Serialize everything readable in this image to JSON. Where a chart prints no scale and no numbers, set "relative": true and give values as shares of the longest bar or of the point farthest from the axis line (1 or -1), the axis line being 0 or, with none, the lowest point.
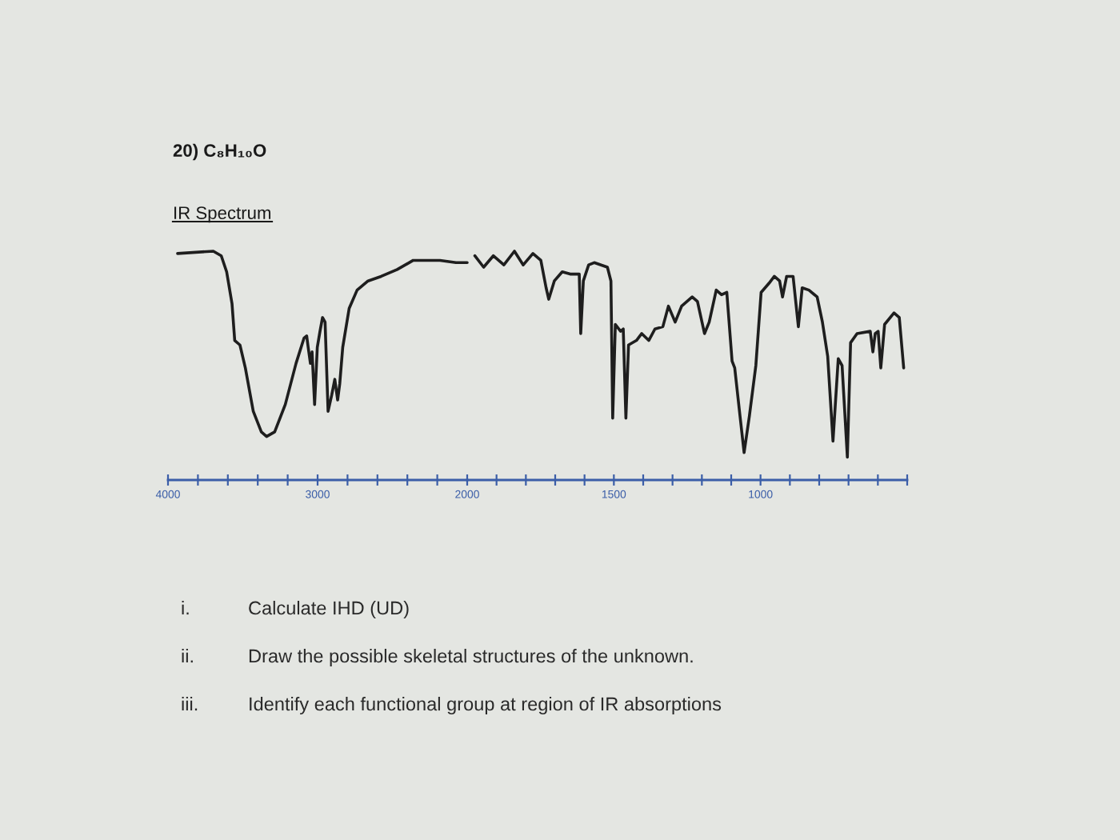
{
  "chart_data": [
    {
      "type": "line",
      "title": "20) C₈H₁₀O",
      "subtitle": "IR Spectrum",
      "relative": true,
      "tick_labels": "x",
      "grid": false,
      "marker": "none",
      "line_style": "solid",
      "x": [
        3936,
        3697,
        3644,
        3608,
        3572,
        3554,
        3519,
        3483,
        3430,
        3376,
        3341,
        3287,
        3216,
        3144,
        3091,
        3073,
        3063,
        3048,
        3037,
        3020,
        3002,
        2984,
        2967,
        2950,
        2930,
        2906,
        2885,
        2866,
        2852,
        2832,
        2789,
        2736,
        2663,
        2575,
        2468,
        2361,
        2182,
        2075,
        2000
      ],
      "series": [
        {
          "color": "#1e1e1e",
          "values": [
            0.99,
            1.0,
            0.98,
            0.91,
            0.77,
            0.61,
            0.59,
            0.49,
            0.3,
            0.21,
            0.19,
            0.21,
            0.33,
            0.51,
            0.62,
            0.63,
            0.58,
            0.51,
            0.56,
            0.33,
            0.58,
            0.65,
            0.71,
            0.69,
            0.3,
            0.37,
            0.44,
            0.35,
            0.42,
            0.58,
            0.75,
            0.83,
            0.87,
            0.89,
            0.92,
            0.96,
            0.96,
            0.95,
            0.95
          ]
        }
      ],
      "xlim": [
        4000,
        2000
      ],
      "xticks": [
        4000,
        {
          "value": 3800,
          "label": null
        },
        {
          "value": 3600,
          "label": null
        },
        {
          "value": 3400,
          "label": null
        },
        {
          "value": 3200,
          "label": null
        },
        3000,
        {
          "value": 2800,
          "label": null
        },
        {
          "value": 2600,
          "label": null
        },
        {
          "value": 2400,
          "label": null
        },
        {
          "value": 2200,
          "label": null
        },
        2000
      ],
      "annotations": [
        "i.",
        "Calculate IHD (UD)",
        "ii.",
        "Draw the possible skeletal structures of the unknown.",
        "iii.",
        "Identify each functional group at region of IR absorptions"
      ]
    },
    {
      "type": "line",
      "relative": true,
      "tick_labels": "x",
      "grid": false,
      "marker": "none",
      "line_style": "solid",
      "x": [
        1974,
        1944,
        1911,
        1875,
        1839,
        1809,
        1776,
        1749,
        1731,
        1722,
        1703,
        1676,
        1649,
        1618,
        1613,
        1604,
        1586,
        1567,
        1522,
        1510,
        1504,
        1495,
        1477,
        1468,
        1459,
        1450,
        1423,
        1405,
        1381,
        1360,
        1333,
        1314,
        1291,
        1269,
        1233,
        1215,
        1191,
        1175,
        1151,
        1133,
        1115,
        1097,
        1088,
        1070,
        1056,
        1038,
        1016,
        998,
        971,
        953,
        935,
        925,
        911,
        889,
        871,
        858,
        835,
        807,
        789,
        771,
        753,
        735,
        722,
        704,
        693,
        671,
        626,
        617,
        609,
        599,
        590,
        577,
        545,
        527,
        512
      ],
      "series": [
        {
          "color": "#1e1e1e",
          "values": [
            0.98,
            0.93,
            0.98,
            0.94,
            1.0,
            0.94,
            0.99,
            0.96,
            0.84,
            0.79,
            0.87,
            0.91,
            0.9,
            0.9,
            0.64,
            0.87,
            0.94,
            0.95,
            0.93,
            0.87,
            0.27,
            0.68,
            0.65,
            0.66,
            0.27,
            0.59,
            0.61,
            0.64,
            0.61,
            0.66,
            0.67,
            0.76,
            0.69,
            0.76,
            0.8,
            0.78,
            0.64,
            0.69,
            0.83,
            0.81,
            0.82,
            0.52,
            0.49,
            0.28,
            0.12,
            0.28,
            0.5,
            0.82,
            0.86,
            0.89,
            0.87,
            0.8,
            0.89,
            0.89,
            0.67,
            0.84,
            0.83,
            0.8,
            0.69,
            0.54,
            0.17,
            0.53,
            0.5,
            0.1,
            0.6,
            0.64,
            0.65,
            0.56,
            0.64,
            0.65,
            0.49,
            0.68,
            0.73,
            0.71,
            0.49
          ]
        }
      ],
      "xlim": [
        2000,
        500
      ],
      "xticks": [
        {
          "value": 1900,
          "label": null
        },
        {
          "value": 1800,
          "label": null
        },
        {
          "value": 1700,
          "label": null
        },
        {
          "value": 1600,
          "label": null
        },
        1500,
        {
          "value": 1400,
          "label": null
        },
        {
          "value": 1300,
          "label": null
        },
        {
          "value": 1200,
          "label": null
        },
        {
          "value": 1100,
          "label": null
        },
        1000,
        {
          "value": 900,
          "label": null
        },
        {
          "value": 800,
          "label": null
        },
        {
          "value": 700,
          "label": null
        },
        {
          "value": 600,
          "label": null
        },
        {
          "value": 500,
          "label": null
        }
      ]
    }
  ]
}
